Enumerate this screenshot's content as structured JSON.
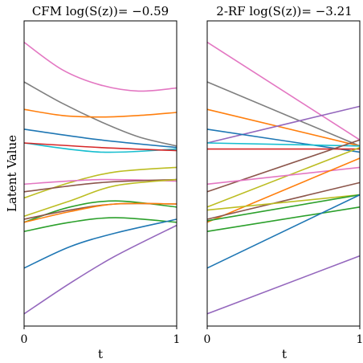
{
  "ylabel": "Latent Value",
  "chart_data": [
    {
      "type": "line",
      "title": "CFM log(S(z))= −0.59",
      "xlabel": "t",
      "xlim": [
        0,
        1
      ],
      "xticks": [
        "0",
        "1"
      ],
      "yticks": [],
      "series": [
        {
          "color": "#e377c2",
          "points": [
            [
              0,
              0.93
            ],
            [
              0.25,
              0.84
            ],
            [
              0.5,
              0.79
            ],
            [
              0.75,
              0.77
            ],
            [
              1,
              0.78
            ]
          ]
        },
        {
          "color": "#7f7f7f",
          "points": [
            [
              0,
              0.8
            ],
            [
              0.25,
              0.73
            ],
            [
              0.5,
              0.67
            ],
            [
              0.75,
              0.62
            ],
            [
              1,
              0.59
            ]
          ]
        },
        {
          "color": "#ff7f0e",
          "points": [
            [
              0,
              0.71
            ],
            [
              0.25,
              0.69
            ],
            [
              0.5,
              0.685
            ],
            [
              0.75,
              0.69
            ],
            [
              1,
              0.7
            ]
          ]
        },
        {
          "color": "#1f77b4",
          "points": [
            [
              0,
              0.645
            ],
            [
              0.5,
              0.61
            ],
            [
              1,
              0.585
            ]
          ]
        },
        {
          "color": "#17becf",
          "points": [
            [
              0,
              0.6
            ],
            [
              0.5,
              0.57
            ],
            [
              1,
              0.58
            ]
          ]
        },
        {
          "color": "#d62728",
          "points": [
            [
              0,
              0.6
            ],
            [
              0.5,
              0.585
            ],
            [
              1,
              0.575
            ]
          ]
        },
        {
          "color": "#bcbd22",
          "points": [
            [
              0,
              0.42
            ],
            [
              0.3,
              0.47
            ],
            [
              0.6,
              0.505
            ],
            [
              1,
              0.52
            ]
          ]
        },
        {
          "color": "#e377c2",
          "points": [
            [
              0,
              0.465
            ],
            [
              0.5,
              0.48
            ],
            [
              1,
              0.475
            ]
          ]
        },
        {
          "color": "#8c564b",
          "points": [
            [
              0,
              0.44
            ],
            [
              0.5,
              0.47
            ],
            [
              1,
              0.48
            ]
          ]
        },
        {
          "color": "#bcbd22",
          "points": [
            [
              0,
              0.36
            ],
            [
              0.3,
              0.41
            ],
            [
              0.6,
              0.46
            ],
            [
              1,
              0.48
            ]
          ]
        },
        {
          "color": "#2ca02c",
          "points": [
            [
              0,
              0.34
            ],
            [
              0.3,
              0.39
            ],
            [
              0.6,
              0.41
            ],
            [
              1,
              0.39
            ]
          ]
        },
        {
          "color": "#8c564b",
          "points": [
            [
              0,
              0.35
            ],
            [
              0.3,
              0.38
            ],
            [
              0.6,
              0.4
            ],
            [
              1,
              0.4
            ]
          ]
        },
        {
          "color": "#ff7f0e",
          "points": [
            [
              0,
              0.34
            ],
            [
              0.3,
              0.375
            ],
            [
              0.6,
              0.4
            ],
            [
              1,
              0.4
            ]
          ]
        },
        {
          "color": "#2ca02c",
          "points": [
            [
              0,
              0.31
            ],
            [
              0.3,
              0.34
            ],
            [
              0.6,
              0.355
            ],
            [
              1,
              0.34
            ]
          ]
        },
        {
          "color": "#1f77b4",
          "points": [
            [
              0,
              0.19
            ],
            [
              0.3,
              0.26
            ],
            [
              0.6,
              0.305
            ],
            [
              1,
              0.35
            ]
          ]
        },
        {
          "color": "#9467bd",
          "points": [
            [
              0,
              0.04
            ],
            [
              0.3,
              0.14
            ],
            [
              0.6,
              0.23
            ],
            [
              1,
              0.33
            ]
          ]
        }
      ]
    },
    {
      "type": "line",
      "title": "2-RF log(S(z))= −3.21",
      "xlabel": "t",
      "xlim": [
        0,
        1
      ],
      "xticks": [
        "0",
        "1"
      ],
      "yticks": [],
      "series": [
        {
          "color": "#e377c2",
          "points": [
            [
              0,
              0.93
            ],
            [
              1,
              0.61
            ]
          ]
        },
        {
          "color": "#7f7f7f",
          "points": [
            [
              0,
              0.8
            ],
            [
              1,
              0.59
            ]
          ]
        },
        {
          "color": "#ff7f0e",
          "points": [
            [
              0,
              0.71
            ],
            [
              1,
              0.59
            ]
          ]
        },
        {
          "color": "#9467bd",
          "points": [
            [
              0,
              0.6
            ],
            [
              1,
              0.72
            ]
          ]
        },
        {
          "color": "#1f77b4",
          "points": [
            [
              0,
              0.645
            ],
            [
              1,
              0.57
            ]
          ]
        },
        {
          "color": "#17becf",
          "points": [
            [
              0,
              0.6
            ],
            [
              1,
              0.59
            ]
          ]
        },
        {
          "color": "#d62728",
          "points": [
            [
              0,
              0.58
            ],
            [
              1,
              0.58
            ]
          ]
        },
        {
          "color": "#8c564b",
          "points": [
            [
              0,
              0.44
            ],
            [
              1,
              0.61
            ]
          ]
        },
        {
          "color": "#bcbd22",
          "points": [
            [
              0,
              0.39
            ],
            [
              1,
              0.585
            ]
          ]
        },
        {
          "color": "#e377c2",
          "points": [
            [
              0,
              0.465
            ],
            [
              1,
              0.52
            ]
          ]
        },
        {
          "color": "#ff7f0e",
          "points": [
            [
              0,
              0.34
            ],
            [
              1,
              0.55
            ]
          ]
        },
        {
          "color": "#8c564b",
          "points": [
            [
              0,
              0.35
            ],
            [
              1,
              0.47
            ]
          ]
        },
        {
          "color": "#bcbd22",
          "points": [
            [
              0,
              0.38
            ],
            [
              1,
              0.43
            ]
          ]
        },
        {
          "color": "#2ca02c",
          "points": [
            [
              0,
              0.31
            ],
            [
              1,
              0.39
            ]
          ]
        },
        {
          "color": "#2ca02c",
          "points": [
            [
              0,
              0.345
            ],
            [
              1,
              0.43
            ]
          ]
        },
        {
          "color": "#1f77b4",
          "points": [
            [
              0,
              0.19
            ],
            [
              1,
              0.43
            ]
          ]
        },
        {
          "color": "#9467bd",
          "points": [
            [
              0,
              0.04
            ],
            [
              1,
              0.23
            ]
          ]
        }
      ]
    }
  ]
}
